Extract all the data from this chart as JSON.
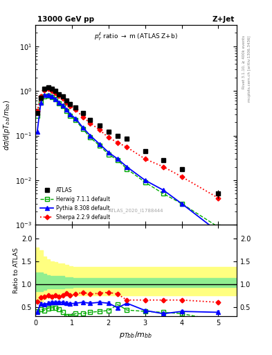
{
  "title_left": "13000 GeV pp",
  "title_right": "Z+Jet",
  "subplot_title": "p_{T}^{jj} ratio → m (ATLAS Z+b)",
  "watermark": "ATLAS_2020_I1788444",
  "right_label_top": "Rivet 3.1.10, ≥ 400k events",
  "right_label_bot": "mcplots.cern.ch [arXiv:1306.3436]",
  "ylabel_main": "dσ/d(pT_{bb}/m_{bb}",
  "ylabel_ratio": "Ratio to ATLAS",
  "xlabel": "p_{Tbb}/m_{bb}",
  "ylim_main_log": [
    0.001,
    30
  ],
  "xlim": [
    0,
    5.5
  ],
  "ratio_ylim": [
    0.3,
    2.3
  ],
  "ratio_yticks": [
    0.5,
    1.0,
    1.5,
    2.0
  ],
  "atlas_x": [
    0.05,
    0.15,
    0.25,
    0.35,
    0.45,
    0.55,
    0.65,
    0.75,
    0.85,
    0.95,
    1.1,
    1.3,
    1.5,
    1.75,
    2.0,
    2.25,
    2.5,
    3.0,
    3.5,
    4.0,
    5.0
  ],
  "atlas_y": [
    0.32,
    0.7,
    1.1,
    1.2,
    1.1,
    1.0,
    0.85,
    0.75,
    0.6,
    0.5,
    0.42,
    0.32,
    0.22,
    0.17,
    0.12,
    0.1,
    0.085,
    0.045,
    0.028,
    0.018,
    0.005
  ],
  "atlas_yerr_lo": [
    0.03,
    0.06,
    0.09,
    0.1,
    0.09,
    0.08,
    0.07,
    0.06,
    0.05,
    0.04,
    0.035,
    0.025,
    0.018,
    0.013,
    0.009,
    0.008,
    0.007,
    0.004,
    0.003,
    0.002,
    0.001
  ],
  "atlas_yerr_hi": [
    0.03,
    0.06,
    0.09,
    0.1,
    0.09,
    0.08,
    0.07,
    0.06,
    0.05,
    0.04,
    0.035,
    0.025,
    0.018,
    0.013,
    0.009,
    0.008,
    0.007,
    0.004,
    0.003,
    0.002,
    0.001
  ],
  "herwig_x": [
    0.05,
    0.15,
    0.25,
    0.35,
    0.45,
    0.55,
    0.65,
    0.75,
    0.85,
    0.95,
    1.1,
    1.3,
    1.5,
    1.75,
    2.0,
    2.25,
    2.5,
    3.0,
    3.5,
    4.0,
    5.0
  ],
  "herwig_y": [
    0.28,
    0.55,
    0.75,
    0.78,
    0.72,
    0.65,
    0.52,
    0.45,
    0.35,
    0.28,
    0.22,
    0.14,
    0.09,
    0.06,
    0.038,
    0.028,
    0.018,
    0.009,
    0.005,
    0.003,
    0.0009
  ],
  "pythia_x": [
    0.05,
    0.15,
    0.25,
    0.35,
    0.45,
    0.55,
    0.65,
    0.75,
    0.85,
    0.95,
    1.1,
    1.3,
    1.5,
    1.75,
    2.0,
    2.25,
    2.5,
    3.0,
    3.5,
    4.0,
    5.0
  ],
  "pythia_y": [
    0.12,
    0.55,
    0.8,
    0.82,
    0.75,
    0.65,
    0.55,
    0.47,
    0.38,
    0.3,
    0.24,
    0.15,
    0.1,
    0.065,
    0.042,
    0.03,
    0.02,
    0.01,
    0.006,
    0.003,
    0.0007
  ],
  "sherpa_x": [
    0.05,
    0.15,
    0.25,
    0.35,
    0.45,
    0.55,
    0.65,
    0.75,
    0.85,
    0.95,
    1.1,
    1.3,
    1.5,
    1.75,
    2.0,
    2.25,
    2.5,
    3.0,
    3.5,
    4.0,
    5.0
  ],
  "sherpa_y": [
    0.35,
    0.75,
    1.05,
    1.1,
    1.0,
    0.9,
    0.78,
    0.68,
    0.55,
    0.45,
    0.38,
    0.26,
    0.19,
    0.135,
    0.09,
    0.07,
    0.055,
    0.03,
    0.02,
    0.012,
    0.004
  ],
  "atlas_color": "#000000",
  "herwig_color": "#00aa00",
  "pythia_color": "#0000ff",
  "sherpa_color": "#ff0000",
  "atlas_band_inner_lo": [
    0.85,
    0.85,
    0.88,
    0.9,
    0.9,
    0.9,
    0.9,
    0.9,
    0.92,
    0.92,
    0.93,
    0.93,
    0.93,
    0.93,
    0.93,
    0.93,
    0.93,
    0.93,
    0.93,
    0.93,
    0.93
  ],
  "atlas_band_inner_hi": [
    1.25,
    1.25,
    1.22,
    1.2,
    1.18,
    1.18,
    1.18,
    1.18,
    1.15,
    1.15,
    1.13,
    1.13,
    1.13,
    1.13,
    1.13,
    1.13,
    1.13,
    1.13,
    1.13,
    1.13,
    1.13
  ],
  "atlas_band_outer_lo": [
    0.6,
    0.62,
    0.68,
    0.7,
    0.72,
    0.72,
    0.74,
    0.74,
    0.75,
    0.75,
    0.76,
    0.76,
    0.76,
    0.76,
    0.76,
    0.76,
    0.76,
    0.76,
    0.76,
    0.76,
    0.76
  ],
  "atlas_band_outer_hi": [
    1.8,
    1.75,
    1.6,
    1.55,
    1.5,
    1.48,
    1.45,
    1.45,
    1.42,
    1.4,
    1.38,
    1.38,
    1.38,
    1.38,
    1.38,
    1.38,
    1.38,
    1.38,
    1.38,
    1.38,
    1.38
  ],
  "ratio_herwig": [
    0.4,
    0.45,
    0.42,
    0.47,
    0.48,
    0.48,
    0.45,
    0.38,
    0.3,
    0.3,
    0.35,
    0.35,
    0.38,
    0.4,
    0.42,
    0.55,
    0.43,
    0.4,
    0.38,
    0.35,
    0.2
  ],
  "ratio_pythia": [
    0.38,
    0.57,
    0.55,
    0.58,
    0.6,
    0.6,
    0.6,
    0.6,
    0.58,
    0.57,
    0.58,
    0.6,
    0.58,
    0.6,
    0.58,
    0.48,
    0.58,
    0.42,
    0.35,
    0.4,
    0.38
  ],
  "ratio_sherpa": [
    0.62,
    0.7,
    0.72,
    0.75,
    0.72,
    0.75,
    0.72,
    0.75,
    0.8,
    0.75,
    0.78,
    0.82,
    0.78,
    0.8,
    0.82,
    0.78,
    0.65,
    0.65,
    0.65,
    0.65,
    0.6
  ],
  "inner_band_color": "#90ee90",
  "outer_band_color": "#ffff80",
  "ratio_line_color": "#000000",
  "fig_bg": "#ffffff",
  "main_bg": "#ffffff",
  "ratio_bg": "#ffffff"
}
